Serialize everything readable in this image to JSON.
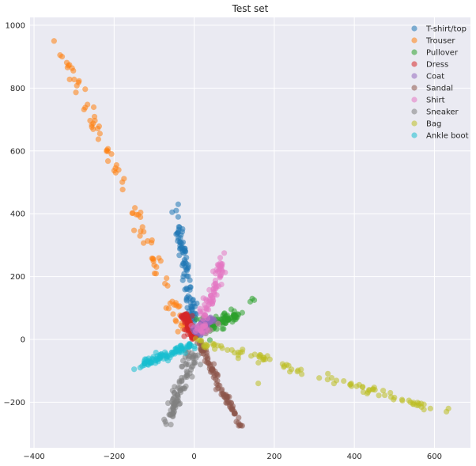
{
  "chart_data": {
    "type": "scatter",
    "title": "Test set",
    "xlabel": "",
    "ylabel": "",
    "xlim": [
      -410,
      690
    ],
    "ylim": [
      -345,
      1025
    ],
    "xticks": [
      -400,
      -200,
      0,
      200,
      400,
      600
    ],
    "yticks": [
      -200,
      0,
      200,
      400,
      600,
      800,
      1000
    ],
    "grid": true,
    "legend_position": "top-right",
    "series": [
      {
        "name": "T-shirt/top",
        "color": "#1f77b4",
        "arm": {
          "from": [
            5,
            10
          ],
          "to": [
            -40,
            360
          ]
        },
        "spread": 7,
        "extra": [
          [
            -55,
            405
          ],
          [
            -45,
            410
          ],
          [
            -40,
            430
          ],
          [
            -40,
            390
          ],
          [
            -45,
            335
          ],
          [
            -40,
            340
          ],
          [
            -35,
            310
          ]
        ]
      },
      {
        "name": "Trouser",
        "color": "#ff7f0e",
        "arm": {
          "from": [
            -20,
            30
          ],
          "to": [
            -320,
            890
          ]
        },
        "spread": 10,
        "extra": [
          [
            -350,
            950
          ],
          [
            -335,
            905
          ],
          [
            -330,
            900
          ],
          [
            -60,
            115
          ],
          [
            -50,
            110
          ],
          [
            -70,
            100
          ]
        ]
      },
      {
        "name": "Pullover",
        "color": "#2ca02c",
        "arm": {
          "from": [
            20,
            35
          ],
          "to": [
            110,
            80
          ]
        },
        "spread": 12,
        "extra": [
          [
            145,
            130
          ],
          [
            150,
            125
          ],
          [
            140,
            120
          ],
          [
            120,
            85
          ],
          [
            100,
            90
          ],
          [
            85,
            65
          ]
        ]
      },
      {
        "name": "Dress",
        "color": "#d62728",
        "arm": {
          "from": [
            -25,
            80
          ],
          "to": [
            0,
            0
          ]
        },
        "spread": 6,
        "extra": [
          [
            -25,
            10
          ],
          [
            -20,
            30
          ],
          [
            -15,
            55
          ],
          [
            -5,
            75
          ],
          [
            -30,
            70
          ]
        ]
      },
      {
        "name": "Coat",
        "color": "#9467bd",
        "arm": {
          "from": [
            5,
            20
          ],
          "to": [
            45,
            70
          ]
        },
        "spread": 7,
        "extra": [
          [
            30,
            40
          ],
          [
            40,
            55
          ]
        ]
      },
      {
        "name": "Sandal",
        "color": "#8c564b",
        "arm": {
          "from": [
            10,
            -10
          ],
          "to": [
            115,
            -275
          ]
        },
        "spread": 6,
        "extra": [
          [
            120,
            -275
          ],
          [
            110,
            -265
          ],
          [
            100,
            -230
          ],
          [
            80,
            -180
          ]
        ]
      },
      {
        "name": "Shirt",
        "color": "#e377c2",
        "arm": {
          "from": [
            15,
            20
          ],
          "to": [
            70,
            250
          ]
        },
        "spread": 9,
        "extra": [
          [
            75,
            275
          ],
          [
            65,
            260
          ],
          [
            20,
            40
          ],
          [
            40,
            30
          ],
          [
            60,
            50
          ]
        ]
      },
      {
        "name": "Sneaker",
        "color": "#7f7f7f",
        "arm": {
          "from": [
            -5,
            -40
          ],
          "to": [
            -65,
            -270
          ]
        },
        "spread": 10,
        "extra": [
          [
            -70,
            -270
          ],
          [
            -75,
            -255
          ],
          [
            -60,
            -240
          ],
          [
            -15,
            -80
          ]
        ]
      },
      {
        "name": "Bag",
        "color": "#bcbd22",
        "arm": {
          "from": [
            0,
            0
          ],
          "to": [
            580,
            -215
          ]
        },
        "spread": 8,
        "extra": [
          [
            635,
            -220
          ],
          [
            630,
            -230
          ],
          [
            590,
            -220
          ],
          [
            560,
            -210
          ],
          [
            540,
            -200
          ],
          [
            520,
            -195
          ],
          [
            500,
            -185
          ],
          [
            490,
            -170
          ],
          [
            160,
            -140
          ],
          [
            110,
            -60
          ],
          [
            120,
            -40
          ]
        ]
      },
      {
        "name": "Ankle boot",
        "color": "#17becf",
        "arm": {
          "from": [
            0,
            -15
          ],
          "to": [
            -130,
            -80
          ]
        },
        "spread": 9,
        "extra": [
          [
            -150,
            -95
          ],
          [
            -135,
            -90
          ],
          [
            -130,
            -85
          ],
          [
            -110,
            -75
          ],
          [
            -90,
            -70
          ]
        ]
      }
    ]
  }
}
